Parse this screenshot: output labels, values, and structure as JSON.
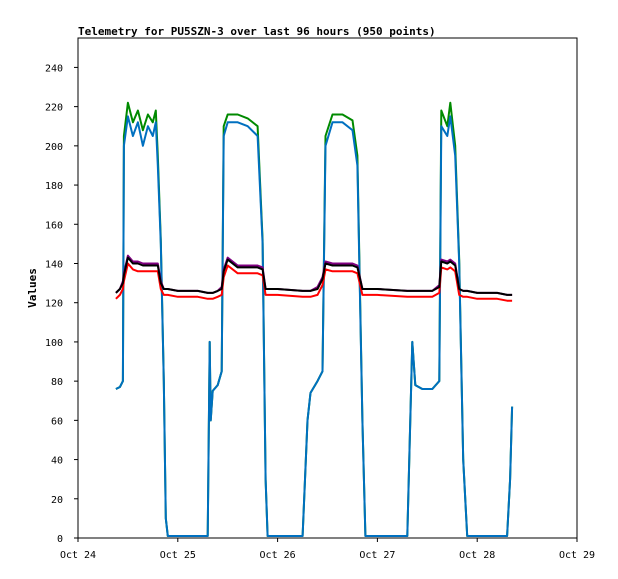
{
  "chart_data": {
    "type": "line",
    "title": "Telemetry for PU5SZN-3 over last 96 hours (950 points)",
    "y_label": "Values",
    "x": [
      0.38,
      0.42,
      0.45,
      0.46,
      0.5,
      0.55,
      0.6,
      0.65,
      0.7,
      0.75,
      0.78,
      0.8,
      0.83,
      0.86,
      0.88,
      0.9,
      1.0,
      1.2,
      1.3,
      1.32,
      1.33,
      1.35,
      1.4,
      1.44,
      1.46,
      1.5,
      1.6,
      1.7,
      1.8,
      1.85,
      1.88,
      1.9,
      2.0,
      2.25,
      2.3,
      2.33,
      2.4,
      2.45,
      2.48,
      2.55,
      2.65,
      2.75,
      2.8,
      2.85,
      2.88,
      3.0,
      3.3,
      3.35,
      3.38,
      3.45,
      3.55,
      3.62,
      3.64,
      3.7,
      3.73,
      3.78,
      3.82,
      3.86,
      3.9,
      4.0,
      4.2,
      4.3,
      4.33,
      4.35
    ],
    "series": [
      {
        "color": "#008a00",
        "values": [
          76,
          77,
          80,
          205,
          222,
          212,
          218,
          208,
          216,
          212,
          218,
          195,
          152,
          80,
          10,
          1,
          1,
          1,
          1,
          100,
          60,
          75,
          78,
          85,
          210,
          216,
          216,
          214,
          210,
          152,
          30,
          1,
          1,
          1,
          60,
          74,
          80,
          85,
          205,
          216,
          216,
          213,
          195,
          60,
          1,
          1,
          1,
          100,
          78,
          76,
          76,
          80,
          218,
          210,
          222,
          200,
          142,
          40,
          1,
          1,
          1,
          1,
          30,
          67
        ]
      },
      {
        "color": "#0070c0",
        "values": [
          76,
          77,
          80,
          200,
          215,
          205,
          212,
          200,
          210,
          205,
          212,
          190,
          150,
          80,
          10,
          1,
          1,
          1,
          1,
          100,
          60,
          75,
          78,
          85,
          205,
          212,
          212,
          210,
          205,
          150,
          30,
          1,
          1,
          1,
          60,
          74,
          80,
          85,
          200,
          212,
          212,
          208,
          190,
          60,
          1,
          1,
          1,
          100,
          78,
          76,
          76,
          80,
          210,
          205,
          215,
          195,
          140,
          40,
          1,
          1,
          1,
          1,
          30,
          67
        ]
      },
      {
        "color": "#ff0000",
        "values": [
          122,
          124,
          127,
          131,
          140,
          137,
          136,
          136,
          136,
          136,
          136,
          136,
          127,
          124,
          124,
          124,
          123,
          123,
          122,
          122,
          122,
          122,
          123,
          124,
          133,
          139,
          135,
          135,
          135,
          134,
          124,
          124,
          124,
          123,
          123,
          123,
          124,
          129,
          137,
          136,
          136,
          136,
          135,
          124,
          124,
          124,
          123,
          123,
          123,
          123,
          123,
          125,
          138,
          137,
          138,
          136,
          124,
          123,
          123,
          122,
          122,
          121,
          121,
          121
        ]
      },
      {
        "color": "#800080",
        "values": [
          125,
          127,
          131,
          135,
          144,
          141,
          141,
          140,
          140,
          140,
          140,
          140,
          131,
          127,
          127,
          127,
          126,
          126,
          125,
          125,
          125,
          125,
          126,
          128,
          137,
          143,
          139,
          139,
          139,
          138,
          127,
          127,
          127,
          126,
          126,
          126,
          128,
          133,
          141,
          140,
          140,
          140,
          139,
          127,
          127,
          127,
          126,
          126,
          126,
          126,
          126,
          129,
          142,
          141,
          142,
          140,
          127,
          126,
          126,
          125,
          125,
          124,
          124,
          124
        ]
      },
      {
        "color": "#000000",
        "values": [
          125,
          127,
          130,
          134,
          143,
          140,
          140,
          139,
          139,
          139,
          139,
          139,
          130,
          127,
          127,
          127,
          126,
          126,
          125,
          125,
          125,
          125,
          126,
          127,
          136,
          142,
          138,
          138,
          138,
          137,
          127,
          127,
          127,
          126,
          126,
          126,
          127,
          132,
          140,
          139,
          139,
          139,
          138,
          127,
          127,
          127,
          126,
          126,
          126,
          126,
          126,
          128,
          141,
          140,
          141,
          139,
          127,
          126,
          126,
          125,
          125,
          124,
          124,
          124
        ]
      }
    ],
    "xlim": [
      0,
      5
    ],
    "xticks": [
      {
        "value": 0,
        "label": "Oct 24"
      },
      {
        "value": 1,
        "label": "Oct 25"
      },
      {
        "value": 2,
        "label": "Oct 26"
      },
      {
        "value": 3,
        "label": "Oct 27"
      },
      {
        "value": 4,
        "label": "Oct 28"
      },
      {
        "value": 5,
        "label": "Oct 29"
      }
    ],
    "ylim": [
      0,
      255
    ],
    "yticks": [
      0,
      20,
      40,
      60,
      80,
      100,
      120,
      140,
      160,
      180,
      200,
      220,
      240
    ]
  }
}
